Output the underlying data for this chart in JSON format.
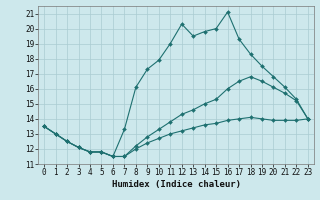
{
  "xlabel": "Humidex (Indice chaleur)",
  "xlim": [
    -0.5,
    23.5
  ],
  "ylim": [
    11,
    21.5
  ],
  "yticks": [
    11,
    12,
    13,
    14,
    15,
    16,
    17,
    18,
    19,
    20,
    21
  ],
  "xticks": [
    0,
    1,
    2,
    3,
    4,
    5,
    6,
    7,
    8,
    9,
    10,
    11,
    12,
    13,
    14,
    15,
    16,
    17,
    18,
    19,
    20,
    21,
    22,
    23
  ],
  "bg_color": "#cde8ec",
  "grid_color": "#aaccd2",
  "line_color": "#1e7070",
  "line1_x": [
    0,
    1,
    2,
    3,
    4,
    5,
    6,
    7,
    8,
    9,
    10,
    11,
    12,
    13,
    14,
    15,
    16,
    17,
    18,
    19,
    20,
    21,
    22,
    23
  ],
  "line1_y": [
    13.5,
    13.0,
    12.5,
    12.1,
    11.8,
    11.8,
    11.5,
    13.3,
    16.1,
    17.3,
    17.9,
    19.0,
    20.3,
    19.5,
    19.8,
    20.0,
    21.1,
    19.3,
    18.3,
    17.5,
    16.8,
    16.1,
    15.3,
    14.0
  ],
  "line2_x": [
    0,
    1,
    2,
    3,
    4,
    5,
    6,
    7,
    8,
    9,
    10,
    11,
    12,
    13,
    14,
    15,
    16,
    17,
    18,
    19,
    20,
    21,
    22,
    23
  ],
  "line2_y": [
    13.5,
    13.0,
    12.5,
    12.1,
    11.8,
    11.8,
    11.5,
    11.5,
    12.2,
    12.8,
    13.3,
    13.8,
    14.3,
    14.6,
    15.0,
    15.3,
    16.0,
    16.5,
    16.8,
    16.5,
    16.1,
    15.7,
    15.2,
    14.0
  ],
  "line3_x": [
    0,
    1,
    2,
    3,
    4,
    5,
    6,
    7,
    8,
    9,
    10,
    11,
    12,
    13,
    14,
    15,
    16,
    17,
    18,
    19,
    20,
    21,
    22,
    23
  ],
  "line3_y": [
    13.5,
    13.0,
    12.5,
    12.1,
    11.8,
    11.8,
    11.5,
    11.5,
    12.0,
    12.4,
    12.7,
    13.0,
    13.2,
    13.4,
    13.6,
    13.7,
    13.9,
    14.0,
    14.1,
    14.0,
    13.9,
    13.9,
    13.9,
    14.0
  ]
}
